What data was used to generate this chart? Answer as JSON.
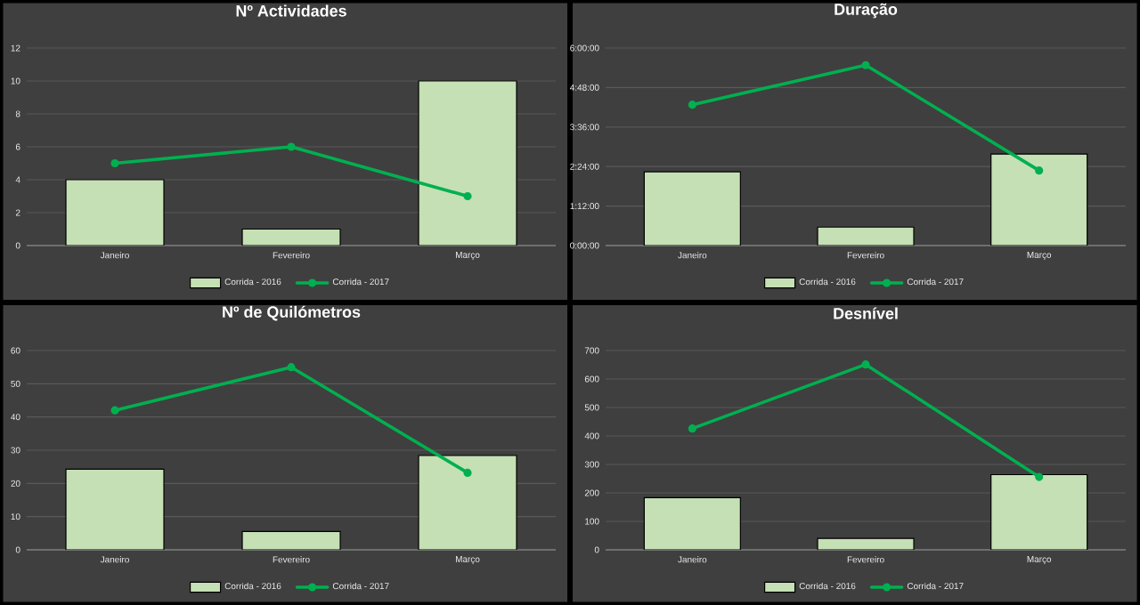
{
  "chart_data": [
    {
      "type": "bar",
      "title": "Nº Actividades",
      "categories": [
        "Janeiro",
        "Fevereiro",
        "Março"
      ],
      "series": [
        {
          "name": "Corrida - 2016",
          "color": "#c5e0b4",
          "values": [
            4,
            1,
            10
          ]
        },
        {
          "name": "Corrida - 2017",
          "type": "line",
          "color": "#00b050",
          "values": [
            5,
            6,
            3
          ]
        }
      ],
      "ylim": [
        0,
        12
      ],
      "yticks": [
        0,
        2,
        4,
        6,
        8,
        10,
        12
      ],
      "grid": "y",
      "legend": "bottom",
      "marker": "circle"
    },
    {
      "type": "bar",
      "title": "Duração",
      "categories": [
        "Janeiro",
        "Fevereiro",
        "Março"
      ],
      "series": [
        {
          "name": "Corrida - 2016",
          "color": "#c5e0b4",
          "values": [
            2.24,
            0.56,
            2.78
          ]
        },
        {
          "name": "Corrida - 2017",
          "type": "line",
          "color": "#00b050",
          "values": [
            4.28,
            5.48,
            2.28
          ]
        }
      ],
      "ylim": [
        0,
        6
      ],
      "yticks": [
        {
          "value": 0,
          "label": "0:00:00"
        },
        {
          "value": 1.2,
          "label": "1:12:00"
        },
        {
          "value": 2.4,
          "label": "2:24:00"
        },
        {
          "value": 3.6,
          "label": "3:36:00"
        },
        {
          "value": 4.8,
          "label": "4:48:00"
        },
        {
          "value": 6,
          "label": "6:00:00"
        }
      ],
      "grid": "y",
      "legend": "bottom",
      "marker": "circle"
    },
    {
      "type": "bar",
      "title": "Nº de Quilómetros",
      "categories": [
        "Janeiro",
        "Fevereiro",
        "Março"
      ],
      "series": [
        {
          "name": "Corrida - 2016",
          "color": "#c5e0b4",
          "values": [
            24.3,
            5.5,
            28.4
          ]
        },
        {
          "name": "Corrida - 2017",
          "type": "line",
          "color": "#00b050",
          "values": [
            42,
            55,
            23.2
          ]
        }
      ],
      "ylim": [
        0,
        60
      ],
      "yticks": [
        0,
        10,
        20,
        30,
        40,
        50,
        60
      ],
      "grid": "y",
      "legend": "bottom",
      "marker": "circle"
    },
    {
      "type": "bar",
      "title": "Desnível",
      "categories": [
        "Janeiro",
        "Fevereiro",
        "Março"
      ],
      "series": [
        {
          "name": "Corrida - 2016",
          "color": "#c5e0b4",
          "values": [
            183,
            40,
            264
          ]
        },
        {
          "name": "Corrida - 2017",
          "type": "line",
          "color": "#00b050",
          "values": [
            426,
            651,
            256
          ]
        }
      ],
      "ylim": [
        0,
        700
      ],
      "yticks": [
        0,
        100,
        200,
        300,
        400,
        500,
        600,
        700
      ],
      "grid": "y",
      "legend": "bottom",
      "marker": "circle"
    }
  ]
}
